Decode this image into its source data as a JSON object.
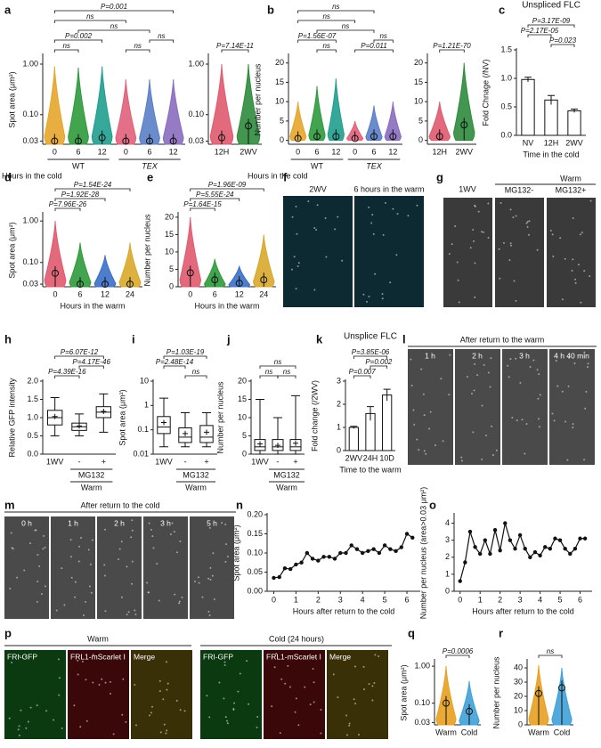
{
  "chart_data": [
    {
      "panel": "a",
      "type": "violin",
      "ylabel": "Spot area (μm²)",
      "xlabel": "Hours in the cold",
      "log": true,
      "categories": [
        "0",
        "6",
        "12",
        "0",
        "6",
        "12"
      ],
      "group_labels": [
        "WT",
        "TEX"
      ],
      "colors": [
        "#e6a52a",
        "#2e9a3c",
        "#1f9e8e",
        "#e0607a",
        "#5b7fc7",
        "#8a6bbf"
      ],
      "values": [
        0.03,
        0.03,
        0.035,
        0.03,
        0.03,
        0.03
      ],
      "max": [
        0.9,
        0.85,
        0.9,
        0.5,
        0.5,
        0.5
      ],
      "ylim": [
        0.026,
        1.5
      ],
      "yticks": [
        {
          "value": 0.03,
          "label": "0.03"
        },
        {
          "value": 0.1,
          "label": "0.10"
        },
        {
          "value": 1,
          "label": "1.00"
        }
      ],
      "annotations": [
        "P=0.001",
        "ns",
        "ns",
        "P=0.002",
        "ns",
        "ns",
        "ns"
      ]
    },
    {
      "type": "violin",
      "log": true,
      "categories": [
        "12H",
        "2WV"
      ],
      "colors": [
        "#e05a6e",
        "#2e8b3c"
      ],
      "values": [
        0.035,
        0.06
      ],
      "max": [
        1.0,
        1.0
      ],
      "ylim": [
        0.026,
        1.5
      ],
      "yticks": [
        {
          "value": 0.03,
          "label": "0.03"
        },
        {
          "value": 0.1,
          "label": "0.10"
        },
        {
          "value": 1,
          "label": "1.00"
        }
      ],
      "annotations": [
        "P=7.14E-11"
      ]
    },
    {
      "panel": "b",
      "type": "violin",
      "ylabel": "Number per nucleus",
      "xlabel": "Hours in the cold",
      "categories": [
        "0",
        "6",
        "12",
        "0",
        "6",
        "12"
      ],
      "group_labels": [
        "WT",
        "TEX"
      ],
      "colors": [
        "#e6a52a",
        "#2e9a3c",
        "#1f9e8e",
        "#e0607a",
        "#5b7fc7",
        "#8a6bbf"
      ],
      "values": [
        0.5,
        1,
        1,
        0.5,
        1,
        1
      ],
      "max": [
        10,
        14,
        16,
        5,
        9,
        10
      ],
      "ylim": [
        -1,
        22
      ],
      "yticks": [
        0,
        5,
        10,
        15,
        20
      ],
      "annotations": [
        "ns",
        "ns",
        "ns",
        "P=1.56E-07",
        "ns",
        "P=0.011",
        "ns"
      ]
    },
    {
      "type": "violin",
      "categories": [
        "12H",
        "2WV"
      ],
      "colors": [
        "#e05a6e",
        "#2e8b3c"
      ],
      "values": [
        1,
        4
      ],
      "max": [
        10,
        20
      ],
      "ylim": [
        -1,
        22
      ],
      "yticks": [
        0,
        5,
        10,
        15,
        20
      ],
      "annotations": [
        "P=1.21E-70"
      ]
    },
    {
      "panel": "c",
      "type": "bar",
      "title": "Unspliced FLC",
      "ylabel": "Fold Chnage (/NV)",
      "xlabel": "Time in the cold",
      "categories": [
        "NV",
        "12H",
        "2WV"
      ],
      "values": [
        0.98,
        0.62,
        0.43
      ],
      "errors": [
        0.04,
        0.08,
        0.03
      ],
      "ylim": [
        0,
        1.5
      ],
      "yticks": [
        {
          "value": 0,
          "label": "0.0"
        },
        {
          "value": 0.5,
          "label": "0.5"
        },
        {
          "value": 1,
          "label": "1.0"
        },
        {
          "value": 1.5,
          "label": "1.5"
        }
      ],
      "annotations": [
        "P=3.17E-09",
        "P=2.17E-05",
        "P=0.023"
      ]
    },
    {
      "panel": "d",
      "type": "violin",
      "ylabel": "Spot area (μm²)",
      "xlabel": "Hours in the warm",
      "log": true,
      "categories": [
        "0",
        "6",
        "12",
        "24"
      ],
      "colors": [
        "#e05a6e",
        "#2e9a3c",
        "#3a6fc7",
        "#d8a82a"
      ],
      "values": [
        0.055,
        0.03,
        0.03,
        0.03
      ],
      "max": [
        1.0,
        0.3,
        0.15,
        0.3
      ],
      "ylim": [
        0.026,
        1.5
      ],
      "yticks": [
        {
          "value": 0.03,
          "label": "0.03"
        },
        {
          "value": 0.1,
          "label": "0.10"
        },
        {
          "value": 1,
          "label": "1.00"
        }
      ],
      "annotations": [
        "P=7.96E-26",
        "P=1.92E-28",
        "P=1.54E-24"
      ]
    },
    {
      "panel": "e",
      "type": "violin",
      "ylabel": "Number per nucleus",
      "xlabel": "Hours in the warm",
      "categories": [
        "0",
        "6",
        "12",
        "24"
      ],
      "colors": [
        "#e05a6e",
        "#2e9a3c",
        "#3a6fc7",
        "#d8a82a"
      ],
      "values": [
        4,
        2,
        1,
        2
      ],
      "max": [
        20,
        8,
        6,
        15
      ],
      "ylim": [
        0,
        21
      ],
      "yticks": [
        0,
        5,
        10,
        15,
        20
      ],
      "annotations": [
        "P=1.64E-15",
        "P=5.55E-24",
        "P=1.96E-09"
      ]
    },
    {
      "panel": "h",
      "type": "box",
      "ylabel": "Relative GFP intensity",
      "categories": [
        "1WV",
        "-",
        "+"
      ],
      "group_labels": [
        "MG132",
        "Warm"
      ],
      "q1": [
        0.8,
        0.65,
        1.0
      ],
      "median": [
        1.0,
        0.75,
        1.15
      ],
      "q3": [
        1.2,
        0.85,
        1.3
      ],
      "min": [
        0.5,
        0.5,
        0.6
      ],
      "max": [
        1.55,
        1.1,
        1.65
      ],
      "means": [
        1.03,
        0.77,
        1.17
      ],
      "ylim": [
        0,
        2
      ],
      "yticks": [
        {
          "value": 0,
          "label": "0.0"
        },
        {
          "value": 0.5,
          "label": "0.5"
        },
        {
          "value": 1,
          "label": "1.0"
        },
        {
          "value": 1.5,
          "label": "1.5"
        },
        {
          "value": 2,
          "label": "2.0"
        }
      ],
      "annotations": [
        "P=6.07E-12",
        "P=4.17E-46",
        "P=4.39E-16"
      ]
    },
    {
      "panel": "i",
      "type": "box",
      "ylabel": "Spot area (μm²)",
      "log": true,
      "categories": [
        "1WV",
        "-",
        "+"
      ],
      "group_labels": [
        "MG132",
        "Warm"
      ],
      "q1": [
        0.07,
        0.03,
        0.03
      ],
      "median": [
        0.13,
        0.05,
        0.05
      ],
      "q3": [
        0.35,
        0.12,
        0.15
      ],
      "min": [
        0.02,
        0.02,
        0.02
      ],
      "max": [
        2,
        0.5,
        0.5
      ],
      "means": [
        0.2,
        0.07,
        0.08
      ],
      "ylim": [
        0.01,
        10
      ],
      "yticks": [
        0.01,
        0.1,
        1,
        10
      ],
      "annotations": [
        "P=1.03E-19",
        "P=2.48E-14",
        "ns"
      ]
    },
    {
      "panel": "j",
      "type": "box",
      "ylabel": "Number per nucleus",
      "categories": [
        "1WV",
        "-",
        "+"
      ],
      "group_labels": [
        "MG132",
        "Warm"
      ],
      "q1": [
        1,
        1,
        1
      ],
      "median": [
        2,
        2,
        2
      ],
      "q3": [
        4,
        4,
        4
      ],
      "min": [
        0,
        0,
        0
      ],
      "max": [
        15,
        10,
        16
      ],
      "means": [
        2.8,
        2.4,
        3
      ],
      "ylim": [
        0,
        20
      ],
      "yticks": [
        0,
        5,
        10,
        15,
        20
      ],
      "annotations": [
        "ns",
        "ns",
        "ns"
      ]
    },
    {
      "panel": "k",
      "type": "bar",
      "title": "Unsplice FLC",
      "ylabel": "Fold change (/2WV)",
      "xlabel": "Time to the warm",
      "categories": [
        "2WV",
        "24H",
        "10D"
      ],
      "values": [
        1.0,
        1.6,
        2.4
      ],
      "errors": [
        0.05,
        0.3,
        0.25
      ],
      "ylim": [
        0,
        3
      ],
      "yticks": [
        0,
        1,
        2,
        3
      ],
      "annotations": [
        "P=3.85E-06",
        "P=0.007",
        "P=0.002"
      ]
    },
    {
      "panel": "n",
      "type": "line",
      "ylabel": "Spot area (μm²)",
      "xlabel": "Hours after return to the cold",
      "x": [
        0,
        0.25,
        0.5,
        0.75,
        1,
        1.25,
        1.5,
        1.75,
        2,
        2.25,
        2.5,
        2.75,
        3,
        3.25,
        3.5,
        3.75,
        4,
        4.25,
        4.5,
        4.75,
        5,
        5.25,
        5.5,
        5.75,
        6,
        6.25
      ],
      "values": [
        0.035,
        0.037,
        0.06,
        0.058,
        0.07,
        0.075,
        0.1,
        0.085,
        0.08,
        0.09,
        0.09,
        0.085,
        0.1,
        0.1,
        0.12,
        0.11,
        0.1,
        0.105,
        0.11,
        0.1,
        0.12,
        0.11,
        0.105,
        0.115,
        0.15,
        0.14
      ],
      "color": "#111111",
      "xlim": [
        -0.3,
        6.6
      ],
      "xticks": [
        0,
        1,
        2,
        3,
        4,
        5,
        6
      ],
      "ylim": [
        0,
        0.2
      ],
      "yticks": [
        {
          "value": 0,
          "label": "0.00"
        },
        {
          "value": 0.05,
          "label": "0.05"
        },
        {
          "value": 0.1,
          "label": "0.10"
        },
        {
          "value": 0.15,
          "label": "0.15"
        },
        {
          "value": 0.2,
          "label": "0.20"
        }
      ]
    },
    {
      "panel": "o",
      "type": "line",
      "ylabel": "Number per nucleus (area>0.03 μm²)",
      "xlabel": "Hours after return to the cold",
      "x": [
        0,
        0.25,
        0.5,
        0.75,
        1,
        1.25,
        1.5,
        1.75,
        2,
        2.25,
        2.5,
        2.75,
        3,
        3.25,
        3.5,
        3.75,
        4,
        4.25,
        4.5,
        4.75,
        5,
        5.25,
        5.5,
        5.75,
        6,
        6.25
      ],
      "values": [
        0.6,
        1.7,
        3.5,
        2.6,
        2.2,
        3.0,
        2.2,
        3.6,
        2.4,
        4.0,
        3.0,
        2.5,
        3.3,
        2.5,
        2.0,
        2.3,
        2.1,
        2.6,
        2.5,
        3.1,
        3.0,
        2.5,
        2.2,
        2.5,
        3.1,
        3.1
      ],
      "color": "#111111",
      "xlim": [
        -0.3,
        6.6
      ],
      "xticks": [
        0,
        1,
        2,
        3,
        4,
        5,
        6
      ],
      "ylim": [
        0,
        4.5
      ],
      "yticks": [
        0,
        1,
        2,
        3,
        4
      ]
    },
    {
      "panel": "q",
      "type": "violin",
      "ylabel": "Spot area (μm²)",
      "log": true,
      "categories": [
        "Warm",
        "Cold"
      ],
      "colors": [
        "#e8a020",
        "#3fa0d8"
      ],
      "values": [
        0.1,
        0.06
      ],
      "max": [
        1.0,
        0.4
      ],
      "ylim": [
        0.026,
        1.4
      ],
      "yticks": [
        {
          "value": 0.03,
          "label": "0.03"
        },
        {
          "value": 0.1,
          "label": "0.10"
        },
        {
          "value": 1,
          "label": "1.00"
        }
      ],
      "annotations": [
        "P=0.0006"
      ]
    },
    {
      "panel": "r",
      "type": "violin",
      "ylabel": "Number per nucleus",
      "categories": [
        "Warm",
        "Cold"
      ],
      "colors": [
        "#e8a020",
        "#3fa0d8"
      ],
      "values": [
        22,
        26
      ],
      "max": [
        42,
        40
      ],
      "ylim": [
        0,
        45
      ],
      "yticks": [
        0,
        10,
        20,
        30,
        40
      ],
      "annotations": [
        "ns"
      ]
    }
  ],
  "images": [
    {
      "panel": "f",
      "labels": [
        "2WV",
        "6 hours in the warm"
      ]
    },
    {
      "panel": "g",
      "labels": [
        "1WV",
        "Warm",
        "MG132-",
        "MG132+"
      ]
    },
    {
      "panel": "l",
      "title": "After return to the warm",
      "labels": [
        "1 h",
        "2 h",
        "3 h",
        "4 h 40 min"
      ]
    },
    {
      "panel": "m",
      "title": "After return to the cold",
      "labels": [
        "0 h",
        "1 h",
        "2 h",
        "3 h",
        "5 h"
      ]
    },
    {
      "panel": "p",
      "labels": [
        "Warm",
        "Cold (24 hours)",
        "FRI-GFP",
        "FRL1-mScarlet I",
        "Merge",
        "FRI-GFP",
        "FRL1-mScarlet I",
        "Merge"
      ]
    }
  ]
}
